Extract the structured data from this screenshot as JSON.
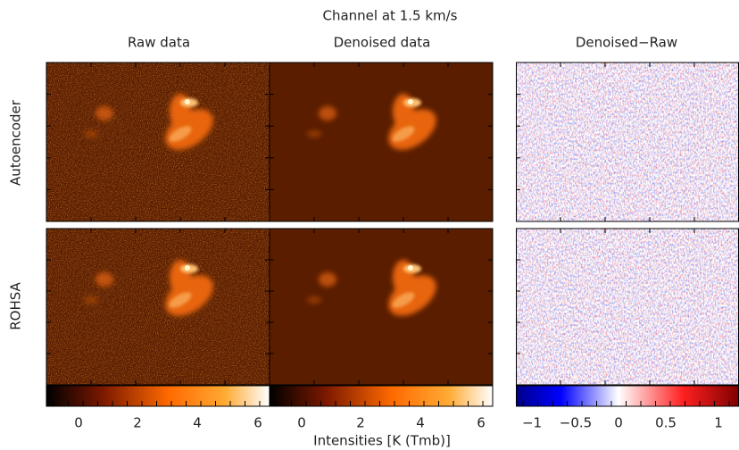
{
  "title": "Channel at 1.5 km/s",
  "columns": [
    "Raw data",
    "Denoised data",
    "Denoised−Raw"
  ],
  "rows": [
    "Autoencoder",
    "ROHSA"
  ],
  "colorbars": [
    {
      "ticks": [
        "0",
        "2",
        "4",
        "6"
      ]
    },
    {
      "ticks": [
        "0",
        "2",
        "4",
        "6"
      ]
    },
    {
      "ticks": [
        "−1",
        "−0.5",
        "0",
        "0.5",
        "1"
      ]
    }
  ],
  "xlabel": "Intensities [K (Tmb)]"
}
